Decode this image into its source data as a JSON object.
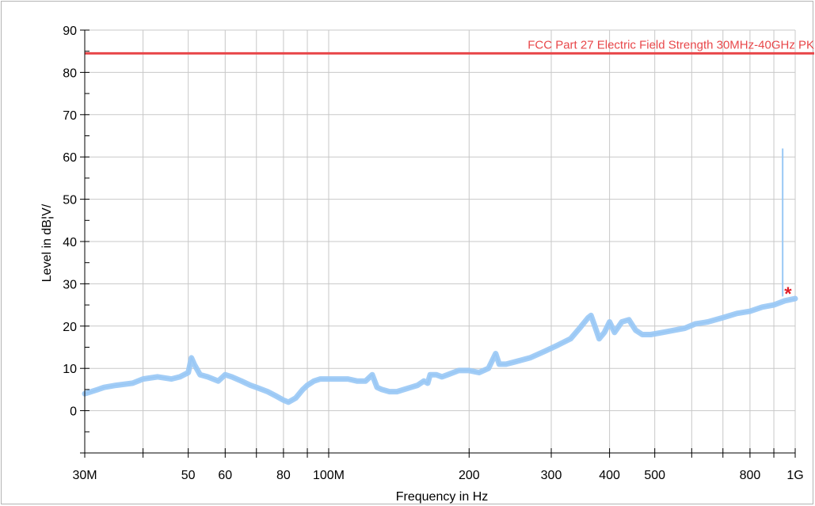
{
  "chart_data": {
    "type": "line",
    "xlabel": "Frequency in Hz",
    "ylabel": "Level in dB¦V/",
    "x_scale": "log",
    "xlim": [
      30000000,
      1000000000
    ],
    "ylim": [
      -10,
      90
    ],
    "grid": true,
    "y_ticks": [
      0,
      10,
      20,
      30,
      40,
      50,
      60,
      70,
      80,
      90
    ],
    "x_ticks": [
      {
        "value": 30000000,
        "label": "30M"
      },
      {
        "value": 40000000,
        "label": ""
      },
      {
        "value": 50000000,
        "label": "50"
      },
      {
        "value": 60000000,
        "label": "60"
      },
      {
        "value": 70000000,
        "label": ""
      },
      {
        "value": 80000000,
        "label": "80"
      },
      {
        "value": 90000000,
        "label": ""
      },
      {
        "value": 100000000,
        "label": "100M"
      },
      {
        "value": 200000000,
        "label": "200"
      },
      {
        "value": 300000000,
        "label": "300"
      },
      {
        "value": 400000000,
        "label": "400"
      },
      {
        "value": 500000000,
        "label": "500"
      },
      {
        "value": 600000000,
        "label": ""
      },
      {
        "value": 700000000,
        "label": ""
      },
      {
        "value": 800000000,
        "label": "800"
      },
      {
        "value": 900000000,
        "label": ""
      },
      {
        "value": 1000000000,
        "label": "1G"
      }
    ],
    "limit_line": {
      "name": "FCC Part 27 Electric Field Strength 30MHz-40GHz PK",
      "value": 84.5,
      "color": "#e8474a"
    },
    "series": [
      {
        "color": "#99c8f5",
        "x": [
          30000000,
          32000000,
          33000000,
          35000000,
          38000000,
          40000000,
          43000000,
          46000000,
          48000000,
          50000000,
          50800000,
          51500000,
          53000000,
          55000000,
          58000000,
          60000000,
          62000000,
          65000000,
          68000000,
          70000000,
          74000000,
          77000000,
          80000000,
          82000000,
          85000000,
          88000000,
          90000000,
          93000000,
          96000000,
          100000000,
          105000000,
          110000000,
          115000000,
          120000000,
          124000000,
          127000000,
          130000000,
          135000000,
          140000000,
          145000000,
          150000000,
          155000000,
          160000000,
          163000000,
          165000000,
          170000000,
          175000000,
          180000000,
          190000000,
          200000000,
          210000000,
          220000000,
          228000000,
          232000000,
          240000000,
          250000000,
          270000000,
          290000000,
          310000000,
          330000000,
          345000000,
          360000000,
          365000000,
          372000000,
          380000000,
          390000000,
          400000000,
          410000000,
          425000000,
          440000000,
          455000000,
          470000000,
          490000000,
          520000000,
          550000000,
          580000000,
          610000000,
          650000000,
          700000000,
          750000000,
          800000000,
          850000000,
          900000000,
          950000000,
          1000000000
        ],
        "y": [
          4,
          5,
          5.5,
          6,
          6.5,
          7.5,
          8,
          7.5,
          8,
          9,
          12.5,
          11,
          8.5,
          8,
          7,
          8.5,
          8,
          7,
          6,
          5.5,
          4.5,
          3.5,
          2.5,
          2,
          3,
          5,
          6,
          7,
          7.5,
          7.5,
          7.5,
          7.5,
          7,
          7,
          8.5,
          5.5,
          5,
          4.5,
          4.5,
          5,
          5.5,
          6,
          7,
          6.5,
          8.5,
          8.5,
          8,
          8.5,
          9.5,
          9.5,
          9,
          10,
          13.5,
          11,
          11,
          11.5,
          12.5,
          14,
          15.5,
          17,
          19.5,
          22,
          22.5,
          20,
          17,
          18.5,
          21,
          18.5,
          21,
          21.5,
          19,
          18,
          18,
          18.5,
          19,
          19.5,
          20.5,
          21,
          22,
          23,
          23.5,
          24.5,
          25,
          26,
          26.5
        ]
      },
      {
        "color": "#99c8f5",
        "x": [
          940000000,
          940000000
        ],
        "y": [
          27,
          62
        ]
      }
    ],
    "peak_marker": {
      "x": 965000000,
      "y": 28,
      "symbol": "*",
      "color": "#e0202a"
    }
  }
}
